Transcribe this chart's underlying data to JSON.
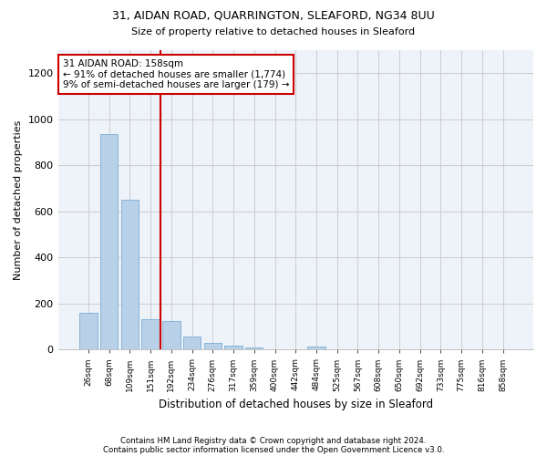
{
  "title1": "31, AIDAN ROAD, QUARRINGTON, SLEAFORD, NG34 8UU",
  "title2": "Size of property relative to detached houses in Sleaford",
  "xlabel": "Distribution of detached houses by size in Sleaford",
  "ylabel": "Number of detached properties",
  "categories": [
    "26sqm",
    "68sqm",
    "109sqm",
    "151sqm",
    "192sqm",
    "234sqm",
    "276sqm",
    "317sqm",
    "359sqm",
    "400sqm",
    "442sqm",
    "484sqm",
    "525sqm",
    "567sqm",
    "608sqm",
    "650sqm",
    "692sqm",
    "733sqm",
    "775sqm",
    "816sqm",
    "858sqm"
  ],
  "values": [
    160,
    935,
    650,
    130,
    125,
    58,
    30,
    17,
    10,
    0,
    0,
    12,
    0,
    0,
    0,
    0,
    0,
    0,
    0,
    0,
    0
  ],
  "bar_color": "#b8d0e8",
  "bar_edge_color": "#7aadd4",
  "annotation_line1": "31 AIDAN ROAD: 158sqm",
  "annotation_line2": "← 91% of detached houses are smaller (1,774)",
  "annotation_line3": "9% of semi-detached houses are larger (179) →",
  "annotation_box_color": "#ffffff",
  "annotation_box_edge": "#cc0000",
  "red_line_color": "#cc0000",
  "grid_color": "#cccccc",
  "ylim": [
    0,
    1300
  ],
  "yticks": [
    0,
    200,
    400,
    600,
    800,
    1000,
    1200
  ],
  "footer1": "Contains HM Land Registry data © Crown copyright and database right 2024.",
  "footer2": "Contains public sector information licensed under the Open Government Licence v3.0.",
  "bg_color": "#ffffff",
  "plot_bg_color": "#eef3fa"
}
